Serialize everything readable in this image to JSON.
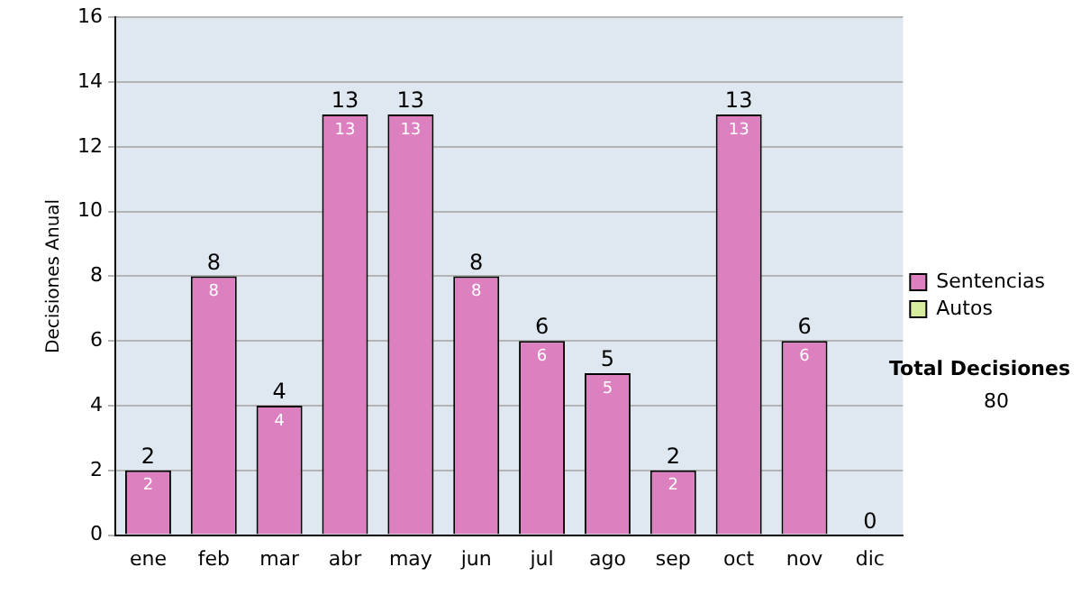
{
  "chart_data": {
    "type": "bar",
    "stacked": true,
    "ylabel": "Decisiones Anual",
    "categories": [
      "ene",
      "feb",
      "mar",
      "abr",
      "may",
      "jun",
      "jul",
      "ago",
      "sep",
      "oct",
      "nov",
      "dic"
    ],
    "series": [
      {
        "name": "Sentencias",
        "color": "#dd80c0",
        "values": [
          2,
          8,
          4,
          13,
          13,
          8,
          6,
          5,
          2,
          13,
          6,
          0
        ],
        "value_labels": [
          "2",
          "8",
          "4",
          "13",
          "13",
          "8",
          "6",
          "5",
          "2",
          "13",
          "6",
          null
        ]
      },
      {
        "name": "Autos",
        "color": "#d8eca0",
        "values": [
          0,
          0,
          0,
          0,
          0,
          0,
          0,
          0,
          0,
          0,
          0,
          0
        ]
      }
    ],
    "totals": [
      "2",
      "8",
      "4",
      "13",
      "13",
      "8",
      "6",
      "5",
      "2",
      "13",
      "6",
      "0"
    ],
    "ylim": [
      0,
      16
    ],
    "yticks": [
      0,
      2,
      4,
      6,
      8,
      10,
      12,
      14,
      16
    ],
    "grid": "y",
    "legend": "right",
    "annotations": [
      "Total Decisiones",
      "80"
    ]
  }
}
